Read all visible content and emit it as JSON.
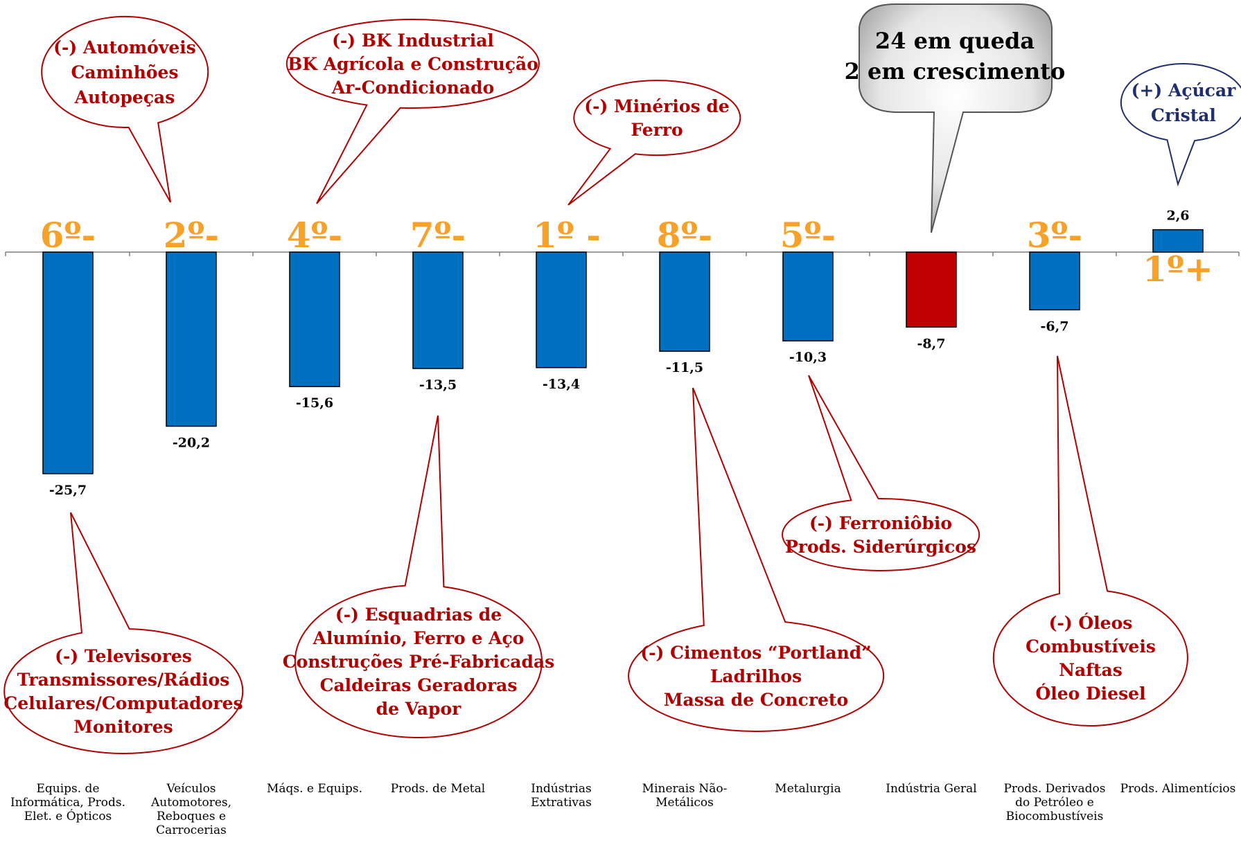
{
  "colors": {
    "bar": "#0070C0",
    "highlight": "#C00000",
    "rank": "#F7A128",
    "callout_neg": "#B00000",
    "callout_pos": "#1F2F6E"
  },
  "chart_data": {
    "type": "bar",
    "categories": [
      "Equips. de Informática, Prods. Elet. e Ópticos",
      "Veículos Automotores, Reboques e Carrocerias",
      "Máqs. e Equips.",
      "Prods. de Metal",
      "Indústrias Extrativas",
      "Minerais Não-Metálicos",
      "Metalurgia",
      "Indústria Geral",
      "Prods. Derivados do Petróleo e Biocombustíveis",
      "Prods. Alimentícios"
    ],
    "category_lines": [
      [
        "Equips. de",
        "Informática, Prods.",
        "Elet. e Ópticos"
      ],
      [
        "Veículos",
        "Automotores,",
        "Reboques e",
        "Carrocerias"
      ],
      [
        "Máqs. e Equips."
      ],
      [
        "Prods. de Metal"
      ],
      [
        "Indústrias",
        "Extrativas"
      ],
      [
        "Minerais Não-",
        "Metálicos"
      ],
      [
        "Metalurgia"
      ],
      [
        "Indústria Geral"
      ],
      [
        "Prods. Derivados",
        "do Petróleo e",
        "Biocombustíveis"
      ],
      [
        "Prods. Alimentícios"
      ]
    ],
    "values": [
      -25.7,
      -20.2,
      -15.6,
      -13.5,
      -13.4,
      -11.5,
      -10.3,
      -8.7,
      -6.7,
      2.6
    ],
    "value_labels": [
      "-25,7",
      "-20,2",
      "-15,6",
      "-13,5",
      "-13,4",
      "-11,5",
      "-10,3",
      "-8,7",
      "-6,7",
      "2,6"
    ],
    "ranks": [
      "6º-",
      "2º-",
      "4º-",
      "7º-",
      "1º -",
      "8º-",
      "5º-",
      "",
      "3º-",
      "1º+"
    ],
    "highlight_index": 7,
    "ylim": [
      -30,
      5
    ],
    "grid": false,
    "title": "",
    "xlabel": "",
    "ylabel": ""
  },
  "callouts": [
    {
      "name": "callout-automoveis",
      "tone": "neg",
      "lines": [
        "(-) Automóveis",
        "Caminhões",
        "Autopeças"
      ]
    },
    {
      "name": "callout-bk-industrial",
      "tone": "neg",
      "lines": [
        "(-) BK Industrial",
        "BK Agrícola e Construção",
        "Ar-Condicionado"
      ]
    },
    {
      "name": "callout-minerios",
      "tone": "neg",
      "lines": [
        "(-) Minérios de",
        "Ferro"
      ]
    },
    {
      "name": "callout-summary",
      "tone": "big",
      "lines": [
        "24 em queda",
        "2 em crescimento"
      ]
    },
    {
      "name": "callout-acucar",
      "tone": "pos",
      "lines": [
        "(+) Açúcar",
        "Cristal"
      ]
    },
    {
      "name": "callout-televisores",
      "tone": "neg",
      "lines": [
        "(-) Televisores",
        "Transmissores/Rádios",
        "Celulares/Computadores",
        "Monitores"
      ]
    },
    {
      "name": "callout-esquadrias",
      "tone": "neg",
      "lines": [
        "(-) Esquadrias de",
        "Alumínio, Ferro e Aço",
        "Construções Pré-Fabricadas",
        "Caldeiras Geradoras",
        "de Vapor"
      ]
    },
    {
      "name": "callout-cimentos",
      "tone": "neg",
      "lines": [
        "(-) Cimentos “Portland”",
        "Ladrilhos",
        "Massa de Concreto"
      ]
    },
    {
      "name": "callout-ferroniobio",
      "tone": "neg",
      "lines": [
        "(-) Ferroniôbio",
        "Prods. Siderúrgicos"
      ]
    },
    {
      "name": "callout-oleos",
      "tone": "neg",
      "lines": [
        "(-) Óleos",
        "Combustíveis",
        "Naftas",
        "Óleo Diesel"
      ]
    }
  ]
}
